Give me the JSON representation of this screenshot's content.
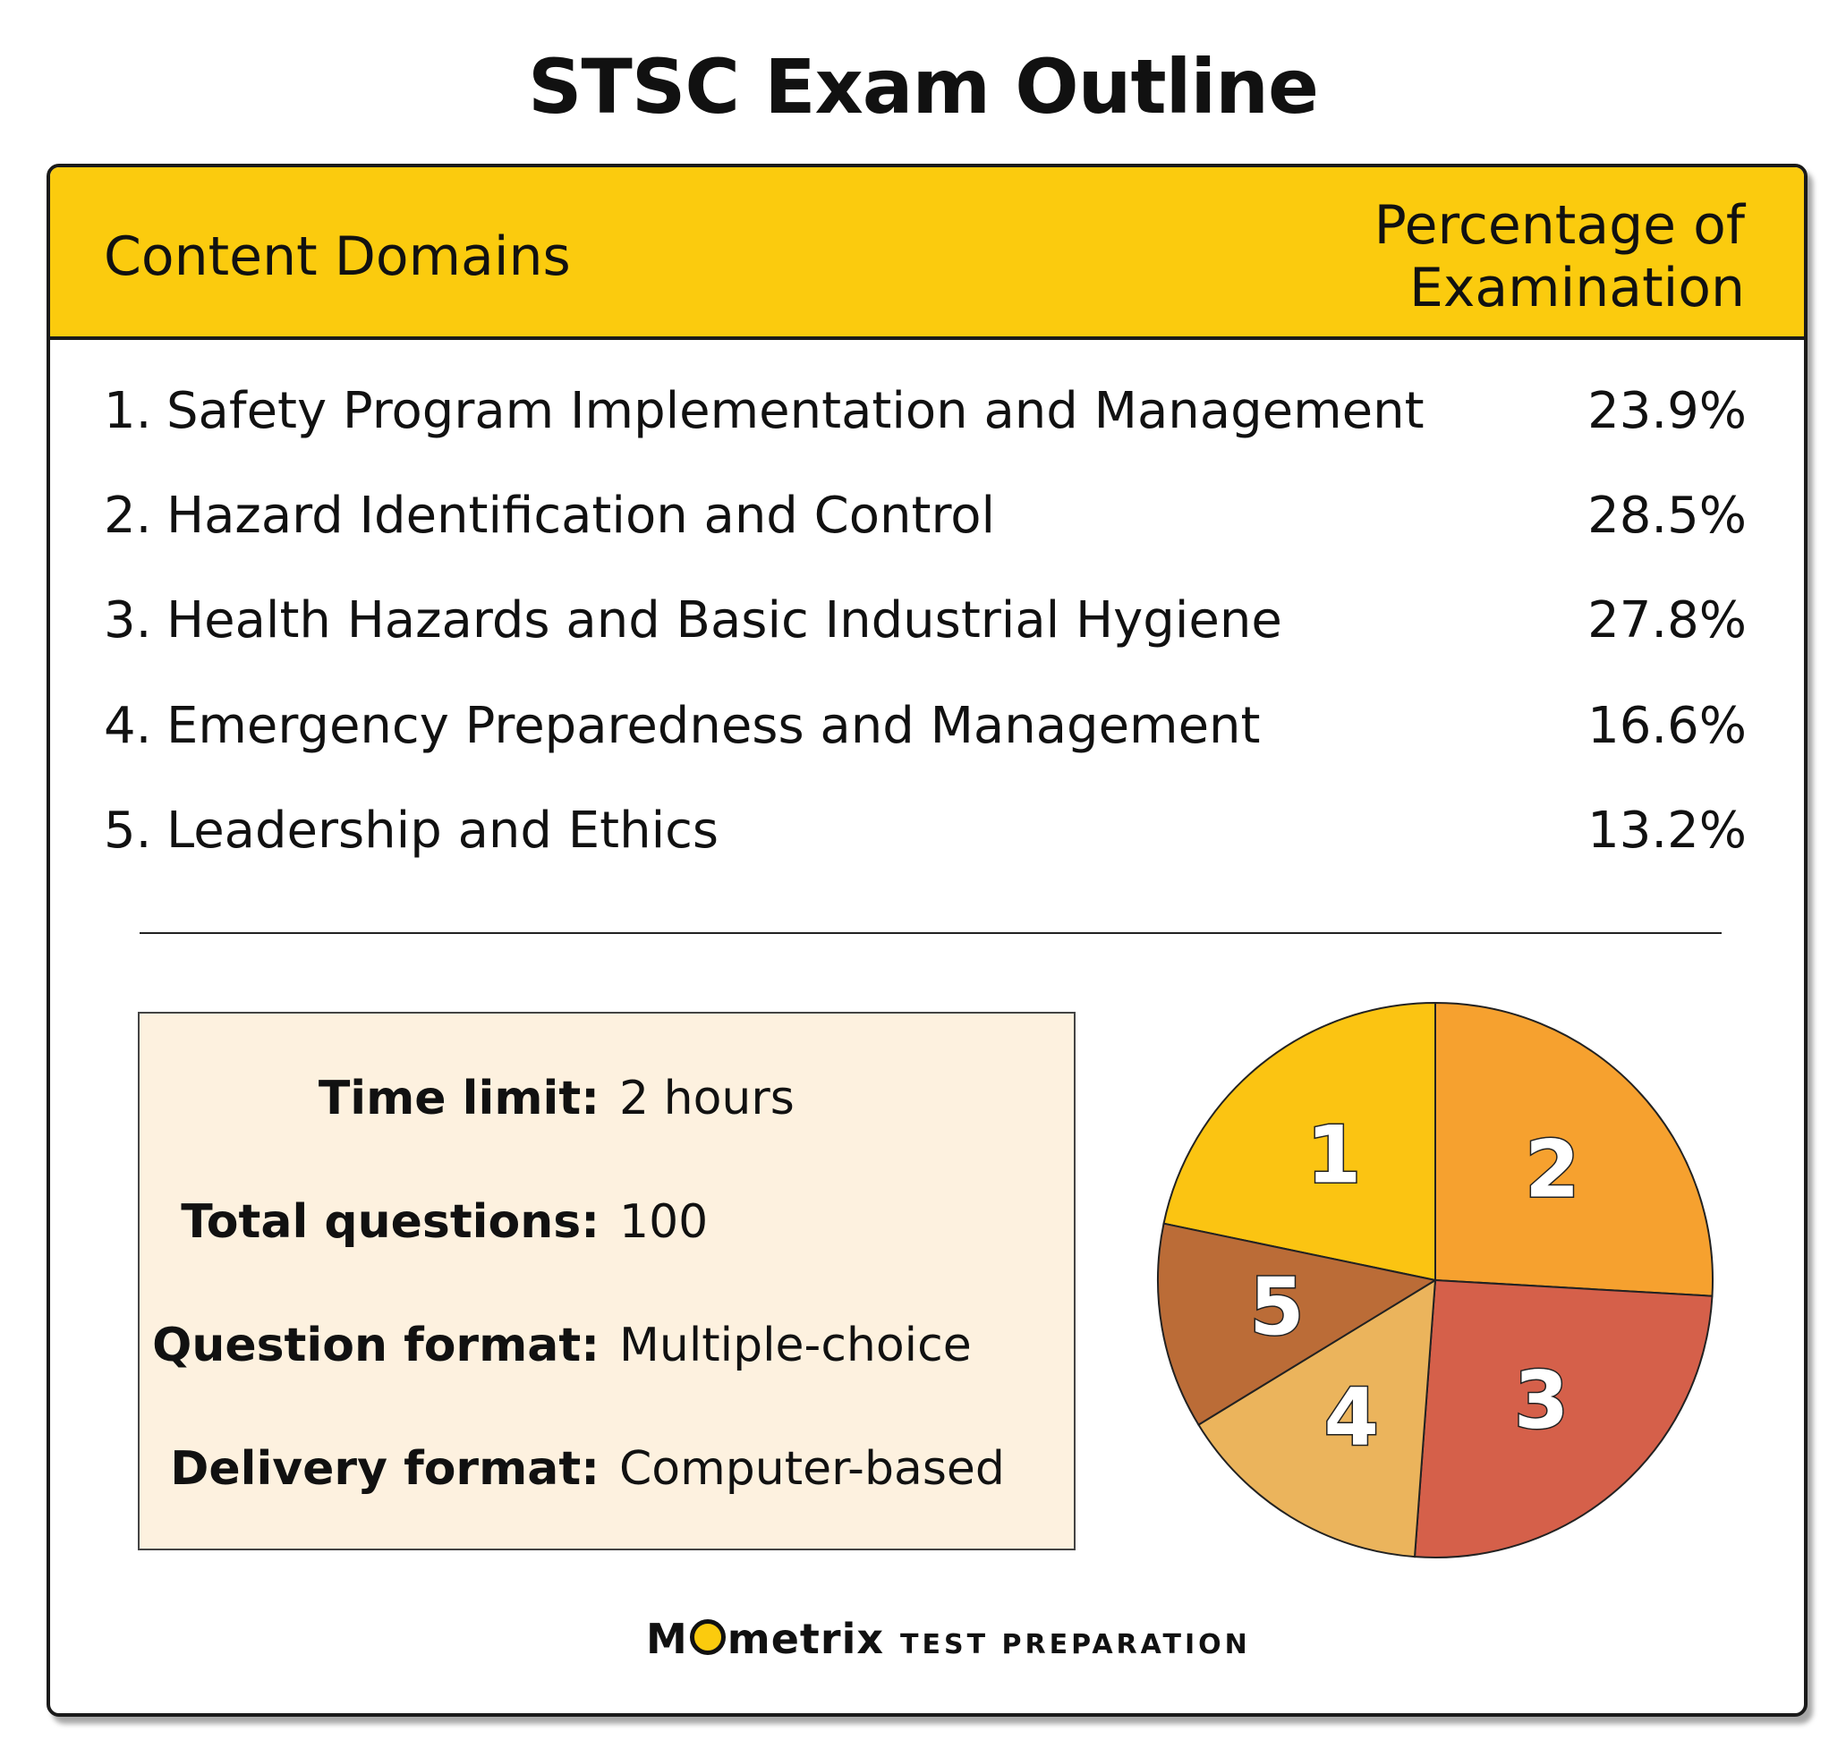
{
  "title": "STSC Exam Outline",
  "header": {
    "left": "Content Domains",
    "right_line1": "Percentage of",
    "right_line2": "Examination"
  },
  "domains": [
    {
      "num": "1.",
      "label": "Safety Program Implementation and Management",
      "pct": "23.9%"
    },
    {
      "num": "2.",
      "label": "Hazard Identification and Control",
      "pct": "28.5%"
    },
    {
      "num": "3.",
      "label": "Health Hazards and Basic Industrial Hygiene",
      "pct": "27.8%"
    },
    {
      "num": "4.",
      "label": "Emergency Preparedness and Management",
      "pct": "16.6%"
    },
    {
      "num": "5.",
      "label": "Leadership and Ethics",
      "pct": "13.2%"
    }
  ],
  "info": [
    {
      "key": "Time limit:",
      "value": "2 hours"
    },
    {
      "key": "Total questions:",
      "value": "100"
    },
    {
      "key": "Question format:",
      "value": "Multiple-choice"
    },
    {
      "key": "Delivery format:",
      "value": "Computer-based"
    }
  ],
  "chart_data": {
    "type": "pie",
    "categories": [
      "1",
      "2",
      "3",
      "4",
      "5"
    ],
    "values": [
      23.9,
      28.5,
      27.8,
      16.6,
      13.2
    ],
    "colors": [
      "#fbc412",
      "#f6a12f",
      "#d5604a",
      "#ebb45c",
      "#bb6c37"
    ]
  },
  "logo": {
    "brand_pre": "M",
    "brand_post": "metrix",
    "sub": "TEST PREPARATION"
  }
}
